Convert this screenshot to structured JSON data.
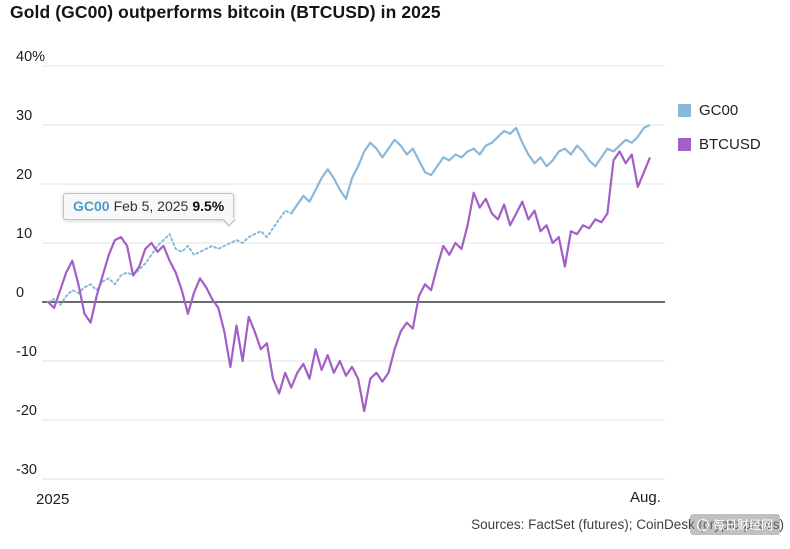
{
  "title": "Gold (GC00) outperforms bitcoin (BTCUSD) in 2025",
  "tooltip": {
    "series": "GC00",
    "date": "Feb 5, 2025",
    "value": "9.5%"
  },
  "legend": [
    {
      "label": "GC00",
      "color": "#8ab8d9"
    },
    {
      "label": "BTCUSD",
      "color": "#a25fc6"
    }
  ],
  "source_note": "Sources: FactSet (futures); CoinDesk (crypto prices)",
  "watermark": "每日财经网",
  "chart_data": {
    "type": "line",
    "title": "Gold (GC00) outperforms bitcoin (BTCUSD) in 2025",
    "unit": "%",
    "x_axis": {
      "start_label": "2025",
      "end_label": "Aug."
    },
    "y_axis": {
      "tick_labels": [
        "40%",
        "30",
        "20",
        "10",
        "0",
        "-10",
        "-20",
        "-30"
      ],
      "tick_values": [
        40,
        30,
        20,
        10,
        0,
        -10,
        -20,
        -30
      ],
      "range": [
        -30,
        40
      ]
    },
    "annotation": {
      "series": "GC00",
      "date": "Feb 5, 2025",
      "value": 9.5
    },
    "series": [
      {
        "name": "GC00",
        "color": "#8ab8d9",
        "values": [
          0,
          0.5,
          -0.5,
          1,
          2,
          1.5,
          2.5,
          3,
          2,
          3.5,
          4,
          3,
          4.5,
          5,
          4.5,
          5.5,
          6.5,
          8,
          9.5,
          10.5,
          11.5,
          9,
          8.5,
          9.5,
          8,
          8.5,
          9,
          9.5,
          9,
          9.5,
          10,
          10.5,
          10,
          11,
          11.5,
          12,
          11,
          12.5,
          14,
          15.5,
          15,
          16.5,
          18,
          17,
          19,
          21,
          22.5,
          21,
          19,
          17.5,
          21,
          23,
          25.5,
          27,
          26,
          24.5,
          26,
          27.5,
          26.5,
          25,
          26,
          24,
          22,
          21.5,
          23,
          24.5,
          24,
          25,
          24.5,
          25.5,
          26,
          25,
          26.5,
          27,
          28,
          29,
          28.5,
          29.5,
          27,
          25,
          23.5,
          24.5,
          23,
          24,
          25.5,
          26,
          25,
          26.5,
          25.5,
          24,
          23,
          24.5,
          26,
          25.5,
          26.5,
          27.5,
          27,
          28,
          29.5,
          30
        ]
      },
      {
        "name": "BTCUSD",
        "color": "#a25fc6",
        "values": [
          0,
          -1,
          2,
          5,
          7,
          3,
          -2,
          -3.5,
          1,
          4.5,
          8,
          10.5,
          11,
          9.5,
          4.5,
          6,
          9,
          10,
          8.5,
          9.5,
          7,
          5,
          2,
          -2,
          1.5,
          4,
          2.5,
          0.5,
          -1,
          -5,
          -11,
          -4,
          -10,
          -2.5,
          -5,
          -8,
          -7,
          -13,
          -15.5,
          -12,
          -14.5,
          -12,
          -10.5,
          -13,
          -8,
          -11.5,
          -9,
          -12,
          -10,
          -12.5,
          -11,
          -13,
          -18.5,
          -13,
          -12,
          -13.5,
          -12,
          -8,
          -5,
          -3.5,
          -4.5,
          1,
          3,
          2,
          6,
          9.5,
          8,
          10,
          9,
          13,
          18.5,
          16,
          17.5,
          15,
          14,
          16.5,
          13,
          15,
          17,
          14,
          15.5,
          12,
          13,
          10,
          11,
          6,
          12,
          11.5,
          13,
          12.5,
          14,
          13.5,
          15,
          24,
          25.5,
          23.5,
          25,
          19.5,
          22,
          24.5
        ]
      }
    ]
  }
}
